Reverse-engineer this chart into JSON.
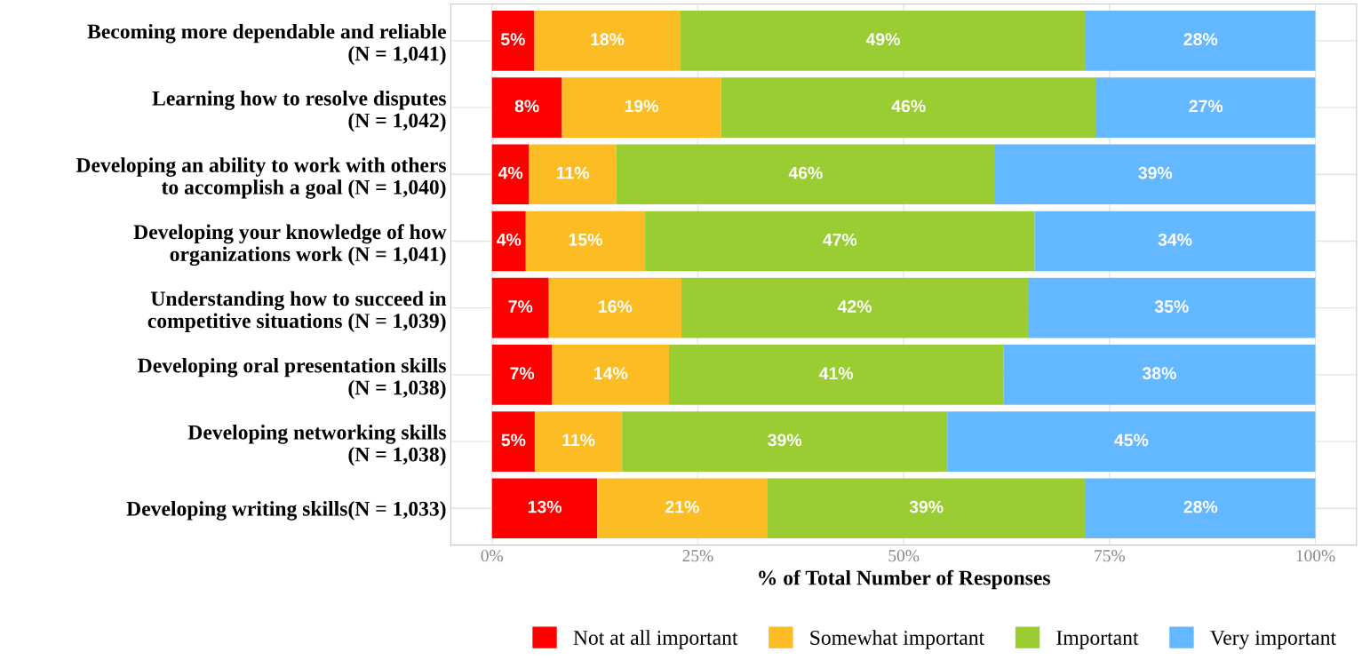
{
  "chart_data": {
    "type": "bar",
    "orientation": "horizontal",
    "stacked": true,
    "categories": [
      "Becoming more dependable and reliable\n(N = 1,041)",
      "Learning how to resolve disputes\n(N = 1,042)",
      "Developing an ability to work with others\nto accomplish a goal (N = 1,040)",
      "Developing your knowledge of how\norganizations work (N = 1,041)",
      "Understanding how to succeed in\ncompetitive situations (N = 1,039)",
      "Developing oral presentation skills\n(N = 1,038)",
      "Developing networking skills\n(N = 1,038)",
      "Developing writing skills(N = 1,033)"
    ],
    "series": [
      {
        "name": "Not at all important",
        "color": "#ff0000",
        "values": [
          5.1,
          8.5,
          4.5,
          4.1,
          6.9,
          7.3,
          5.2,
          12.8
        ],
        "value_labels": [
          "5%",
          "8%",
          "4%",
          "4%",
          "7%",
          "7%",
          "5%",
          "13%"
        ]
      },
      {
        "name": "Somewhat important",
        "color": "#fbbc24",
        "values": [
          17.8,
          19.3,
          10.6,
          14.5,
          16.1,
          14.2,
          10.6,
          20.6
        ],
        "value_labels": [
          "18%",
          "19%",
          "11%",
          "15%",
          "16%",
          "14%",
          "11%",
          "21%"
        ]
      },
      {
        "name": "Important",
        "color": "#9acd32",
        "values": [
          49.2,
          45.6,
          46.0,
          47.3,
          42.1,
          40.6,
          39.5,
          38.7
        ],
        "value_labels": [
          "49%",
          "46%",
          "46%",
          "47%",
          "42%",
          "41%",
          "39%",
          "39%"
        ]
      },
      {
        "name": "Very important",
        "color": "#63b8ff",
        "values": [
          27.9,
          26.6,
          38.9,
          34.1,
          34.9,
          37.9,
          44.7,
          27.9
        ],
        "value_labels": [
          "28%",
          "27%",
          "39%",
          "34%",
          "35%",
          "38%",
          "45%",
          "28%"
        ]
      }
    ],
    "xlabel": "% of Total Number of Responses",
    "xlim": [
      -5,
      105
    ],
    "xticks": [
      {
        "value": 0,
        "label": "0%"
      },
      {
        "value": 25,
        "label": "25%"
      },
      {
        "value": 50,
        "label": "50%"
      },
      {
        "value": 75,
        "label": "75%"
      },
      {
        "value": 100,
        "label": "100%"
      }
    ],
    "grid": true,
    "legend": "bottom"
  }
}
